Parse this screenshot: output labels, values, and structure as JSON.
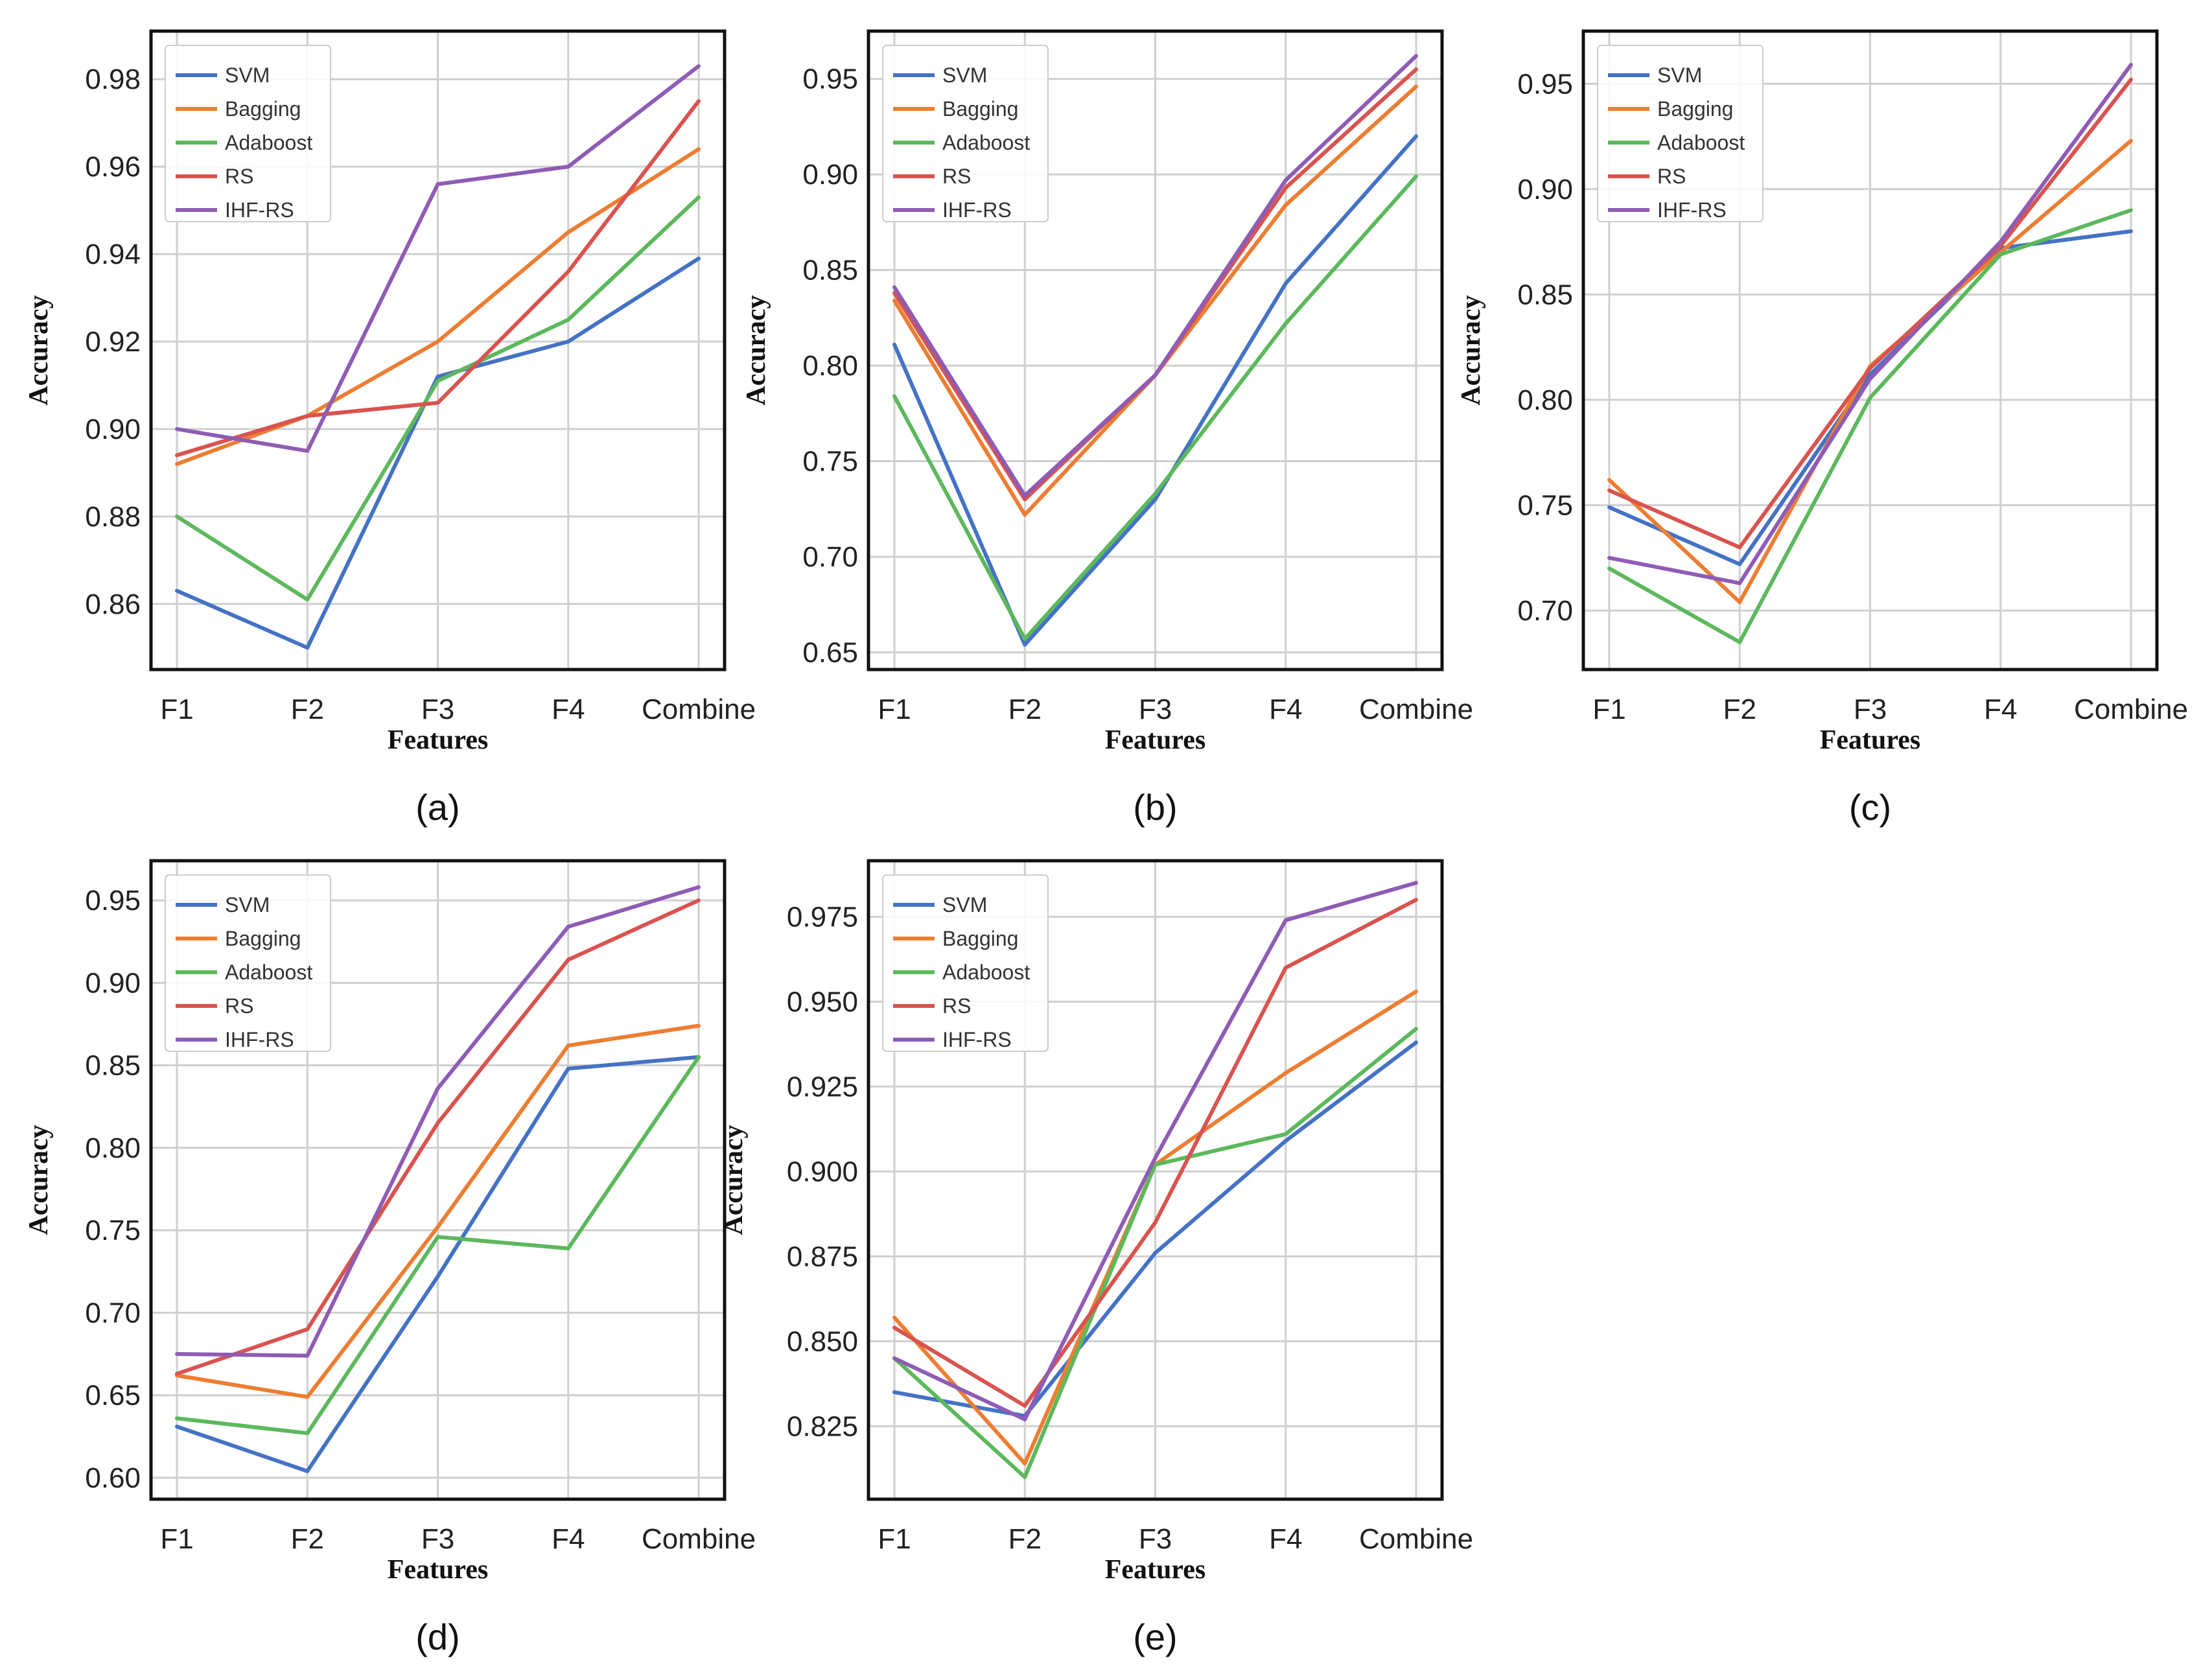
{
  "colors": {
    "SVM": "#4472c4",
    "Bagging": "#ed7d31",
    "Adaboost": "#5cb85c",
    "RS": "#d9534f",
    "IHF-RS": "#8e5cb5"
  },
  "chart_data": [
    {
      "type": "line",
      "caption": "(a)",
      "categories": [
        "F1",
        "F2",
        "F3",
        "F4",
        "Combine"
      ],
      "xlabel": "Features",
      "ylabel": "Accuracy",
      "ylim": [
        0.845,
        0.991
      ],
      "yticks": [
        0.86,
        0.88,
        0.9,
        0.92,
        0.94,
        0.96,
        0.98
      ],
      "ytick_labels": [
        "0.86",
        "0.88",
        "0.90",
        "0.92",
        "0.94",
        "0.96",
        "0.98"
      ],
      "legend_position": "top-left",
      "grid": true,
      "series": [
        {
          "name": "SVM",
          "values": [
            0.863,
            0.85,
            0.912,
            0.92,
            0.939
          ]
        },
        {
          "name": "Bagging",
          "values": [
            0.892,
            0.903,
            0.92,
            0.945,
            0.964
          ]
        },
        {
          "name": "Adaboost",
          "values": [
            0.88,
            0.861,
            0.911,
            0.925,
            0.953
          ]
        },
        {
          "name": "RS",
          "values": [
            0.894,
            0.903,
            0.906,
            0.936,
            0.975
          ]
        },
        {
          "name": "IHF-RS",
          "values": [
            0.9,
            0.895,
            0.956,
            0.96,
            0.983
          ]
        }
      ]
    },
    {
      "type": "line",
      "caption": "(b)",
      "categories": [
        "F1",
        "F2",
        "F3",
        "F4",
        "Combine"
      ],
      "xlabel": "Features",
      "ylabel": "Accuracy",
      "ylim": [
        0.641,
        0.975
      ],
      "yticks": [
        0.65,
        0.7,
        0.75,
        0.8,
        0.85,
        0.9,
        0.95
      ],
      "ytick_labels": [
        "0.65",
        "0.70",
        "0.75",
        "0.80",
        "0.85",
        "0.90",
        "0.95"
      ],
      "legend_position": "top-left",
      "grid": true,
      "series": [
        {
          "name": "SVM",
          "values": [
            0.811,
            0.654,
            0.73,
            0.843,
            0.92
          ]
        },
        {
          "name": "Bagging",
          "values": [
            0.834,
            0.722,
            0.795,
            0.884,
            0.946
          ]
        },
        {
          "name": "Adaboost",
          "values": [
            0.784,
            0.657,
            0.733,
            0.822,
            0.899
          ]
        },
        {
          "name": "RS",
          "values": [
            0.838,
            0.73,
            0.795,
            0.893,
            0.955
          ]
        },
        {
          "name": "IHF-RS",
          "values": [
            0.841,
            0.732,
            0.795,
            0.897,
            0.962
          ]
        }
      ]
    },
    {
      "type": "line",
      "caption": "(c)",
      "categories": [
        "F1",
        "F2",
        "F3",
        "F4",
        "Combine"
      ],
      "xlabel": "Features",
      "ylabel": "Accuracy",
      "ylim": [
        0.672,
        0.975
      ],
      "yticks": [
        0.7,
        0.75,
        0.8,
        0.85,
        0.9,
        0.95
      ],
      "ytick_labels": [
        "0.70",
        "0.75",
        "0.80",
        "0.85",
        "0.90",
        "0.95"
      ],
      "legend_position": "top-left",
      "grid": true,
      "series": [
        {
          "name": "SVM",
          "values": [
            0.749,
            0.722,
            0.812,
            0.872,
            0.88
          ]
        },
        {
          "name": "Bagging",
          "values": [
            0.762,
            0.704,
            0.816,
            0.87,
            0.923
          ]
        },
        {
          "name": "Adaboost",
          "values": [
            0.72,
            0.685,
            0.801,
            0.869,
            0.89
          ]
        },
        {
          "name": "RS",
          "values": [
            0.757,
            0.73,
            0.815,
            0.873,
            0.952
          ]
        },
        {
          "name": "IHF-RS",
          "values": [
            0.725,
            0.713,
            0.81,
            0.875,
            0.959
          ]
        }
      ]
    },
    {
      "type": "line",
      "caption": "(d)",
      "categories": [
        "F1",
        "F2",
        "F3",
        "F4",
        "Combine"
      ],
      "xlabel": "Features",
      "ylabel": "Accuracy",
      "ylim": [
        0.587,
        0.974
      ],
      "yticks": [
        0.6,
        0.65,
        0.7,
        0.75,
        0.8,
        0.85,
        0.9,
        0.95
      ],
      "ytick_labels": [
        "0.60",
        "0.65",
        "0.70",
        "0.75",
        "0.80",
        "0.85",
        "0.90",
        "0.95"
      ],
      "legend_position": "top-left",
      "grid": true,
      "series": [
        {
          "name": "SVM",
          "values": [
            0.631,
            0.604,
            0.722,
            0.848,
            0.855
          ]
        },
        {
          "name": "Bagging",
          "values": [
            0.662,
            0.649,
            0.752,
            0.862,
            0.874
          ]
        },
        {
          "name": "Adaboost",
          "values": [
            0.636,
            0.627,
            0.746,
            0.739,
            0.855
          ]
        },
        {
          "name": "RS",
          "values": [
            0.663,
            0.69,
            0.815,
            0.914,
            0.95
          ]
        },
        {
          "name": "IHF-RS",
          "values": [
            0.675,
            0.674,
            0.836,
            0.934,
            0.958
          ]
        }
      ]
    },
    {
      "type": "line",
      "caption": "(e)",
      "categories": [
        "F1",
        "F2",
        "F3",
        "F4",
        "Combine"
      ],
      "xlabel": "Features",
      "ylabel": "Accuracy",
      "ylim": [
        0.8035,
        0.9915
      ],
      "yticks": [
        0.825,
        0.85,
        0.875,
        0.9,
        0.925,
        0.95,
        0.975
      ],
      "ytick_labels": [
        "0.825",
        "0.850",
        "0.875",
        "0.900",
        "0.925",
        "0.950",
        "0.975"
      ],
      "legend_position": "top-left",
      "grid": true,
      "series": [
        {
          "name": "SVM",
          "values": [
            0.835,
            0.828,
            0.876,
            0.909,
            0.938
          ]
        },
        {
          "name": "Bagging",
          "values": [
            0.857,
            0.814,
            0.902,
            0.929,
            0.953
          ]
        },
        {
          "name": "Adaboost",
          "values": [
            0.845,
            0.81,
            0.902,
            0.911,
            0.942
          ]
        },
        {
          "name": "RS",
          "values": [
            0.854,
            0.831,
            0.885,
            0.96,
            0.98
          ]
        },
        {
          "name": "IHF-RS",
          "values": [
            0.845,
            0.827,
            0.904,
            0.974,
            0.985
          ]
        }
      ]
    }
  ]
}
